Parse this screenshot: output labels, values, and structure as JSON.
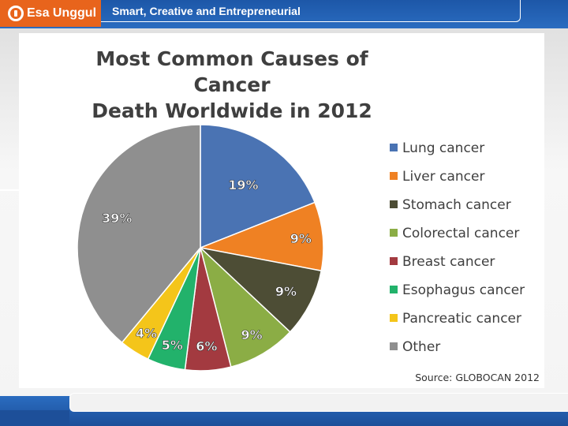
{
  "header": {
    "logo_text": "Esa Unggul",
    "tagline": "Smart, Creative and Entrepreneurial",
    "brand_color": "#1d57a8",
    "logo_color": "#e8641c"
  },
  "chart_data": {
    "type": "pie",
    "title_lines": [
      "Most Common Causes of Cancer",
      "Death Worldwide in 2012"
    ],
    "source": "Source: GLOBOCAN 2012",
    "legend_position": "right",
    "categories": [
      "Lung cancer",
      "Liver cancer",
      "Stomach cancer",
      "Colorectal cancer",
      "Breast cancer",
      "Esophagus cancer",
      "Pancreatic cancer",
      "Other"
    ],
    "values": [
      19,
      9,
      9,
      9,
      6,
      5,
      4,
      39
    ],
    "labels": [
      "19%",
      "9%",
      "9%",
      "9%",
      "6%",
      "5%",
      "4%",
      "39%"
    ],
    "colors": [
      "#4a73b3",
      "#ef8123",
      "#4d4d35",
      "#8bad45",
      "#a33a40",
      "#22b26b",
      "#f4c51a",
      "#8f8f8f"
    ]
  }
}
